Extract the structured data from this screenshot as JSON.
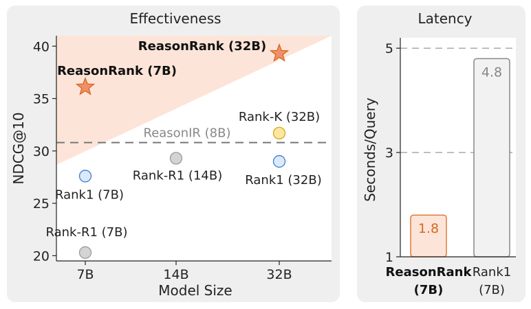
{
  "chart_data": [
    {
      "type": "scatter",
      "title": "Effectiveness",
      "xlabel": "Model Size",
      "ylabel": "NDCG@10",
      "categories": [
        "7B",
        "14B",
        "32B"
      ],
      "y_ticks": [
        20,
        25,
        30,
        35,
        40
      ],
      "ylim": [
        19.5,
        41
      ],
      "baseline": {
        "label": "ReasonIR (8B)",
        "value": 30.8
      },
      "series": [
        {
          "name": "ReasonRank (7B)",
          "x": "7B",
          "y": 36.1,
          "marker": "star",
          "color": "#f0906a"
        },
        {
          "name": "ReasonRank (32B)",
          "x": "32B",
          "y": 39.3,
          "marker": "star",
          "color": "#f0906a"
        },
        {
          "name": "Rank-K (32B)",
          "x": "32B",
          "y": 31.7,
          "marker": "circle",
          "color": "#fbe7a0"
        },
        {
          "name": "Rank1 (7B)",
          "x": "7B",
          "y": 27.6,
          "marker": "circle",
          "color": "#dce9f8"
        },
        {
          "name": "Rank1 (32B)",
          "x": "32B",
          "y": 29.0,
          "marker": "circle",
          "color": "#dce9f8"
        },
        {
          "name": "Rank-R1 (14B)",
          "x": "14B",
          "y": 29.3,
          "marker": "circle",
          "color": "#d4d4d4"
        },
        {
          "name": "Rank-R1 (7B)",
          "x": "7B",
          "y": 20.3,
          "marker": "circle",
          "color": "#d4d4d4"
        }
      ]
    },
    {
      "type": "bar",
      "title": "Latency",
      "ylabel": "Seconds/Query",
      "y_ticks": [
        1,
        3,
        5
      ],
      "ylim": [
        1,
        5.2
      ],
      "categories": [
        [
          "ReasonRank",
          "(7B)"
        ],
        [
          "Rank1",
          "(7B)"
        ]
      ],
      "values": [
        1.8,
        4.8
      ],
      "value_labels": [
        "1.8",
        "4.8"
      ],
      "colors": [
        "#fde4d8",
        "#f2f2f2"
      ],
      "stroke_colors": [
        "#e07a3c",
        "#888888"
      ],
      "label_colors": [
        "#d2691e",
        "#888888"
      ],
      "bold_categories": [
        true,
        false
      ]
    }
  ]
}
